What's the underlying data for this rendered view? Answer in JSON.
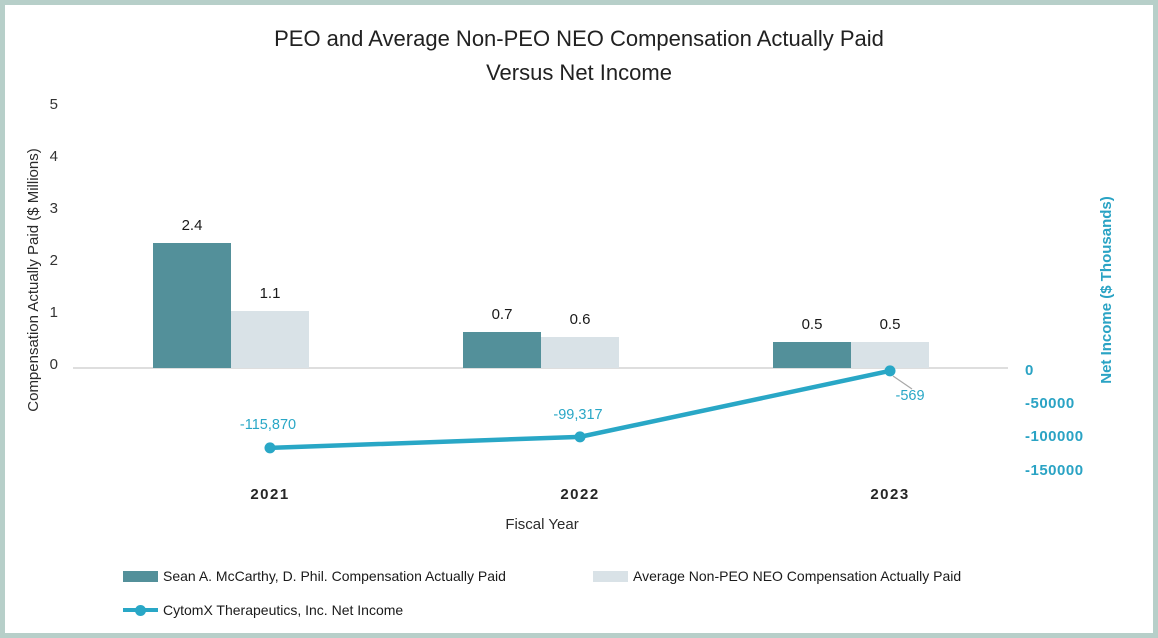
{
  "frame": {
    "border_color": "#b7cfc9"
  },
  "title": {
    "line1": "PEO and Average Non-PEO NEO Compensation Actually Paid",
    "line2": "Versus Net Income"
  },
  "chart_data": {
    "type": "combo-bar-line",
    "categories": [
      "2021",
      "2022",
      "2023"
    ],
    "series": [
      {
        "name": "Sean A. McCarthy, D. Phil. Compensation Actually Paid",
        "type": "bar",
        "axis": "left",
        "color": "#53909a",
        "values": [
          2.4,
          0.7,
          0.5
        ],
        "value_labels": [
          "2.4",
          "0.7",
          "0.5"
        ]
      },
      {
        "name": "Average Non-PEO NEO Compensation Actually Paid",
        "type": "bar",
        "axis": "left",
        "color": "#d9e2e7",
        "values": [
          1.1,
          0.6,
          0.5
        ],
        "value_labels": [
          "1.1",
          "0.6",
          "0.5"
        ]
      },
      {
        "name": "CytomX Therapeutics, Inc. Net Income",
        "type": "line",
        "axis": "right",
        "color": "#29a7c6",
        "values": [
          -115870,
          -99317,
          -569
        ],
        "value_labels": [
          "-115,870",
          "-99,317",
          "-569"
        ]
      }
    ],
    "x_axis": {
      "title": "Fiscal Year"
    },
    "left_axis": {
      "title": "Compensation Actually Paid ($ Millions)",
      "tick_labels": [
        "5",
        "4",
        "3",
        "2",
        "1",
        "0"
      ],
      "tick_values": [
        5,
        4,
        3,
        2,
        1,
        0
      ],
      "range": [
        0,
        5
      ]
    },
    "right_axis": {
      "title": "Net Income ($ Thousands)",
      "tick_labels": [
        "0",
        "-50000",
        "-100000",
        "-150000"
      ],
      "tick_values": [
        0,
        -50000,
        -100000,
        -150000
      ],
      "color": "#2aa3c4",
      "range": [
        -150000,
        0
      ]
    },
    "grid": "zero-baseline-only",
    "legend_position": "bottom"
  }
}
